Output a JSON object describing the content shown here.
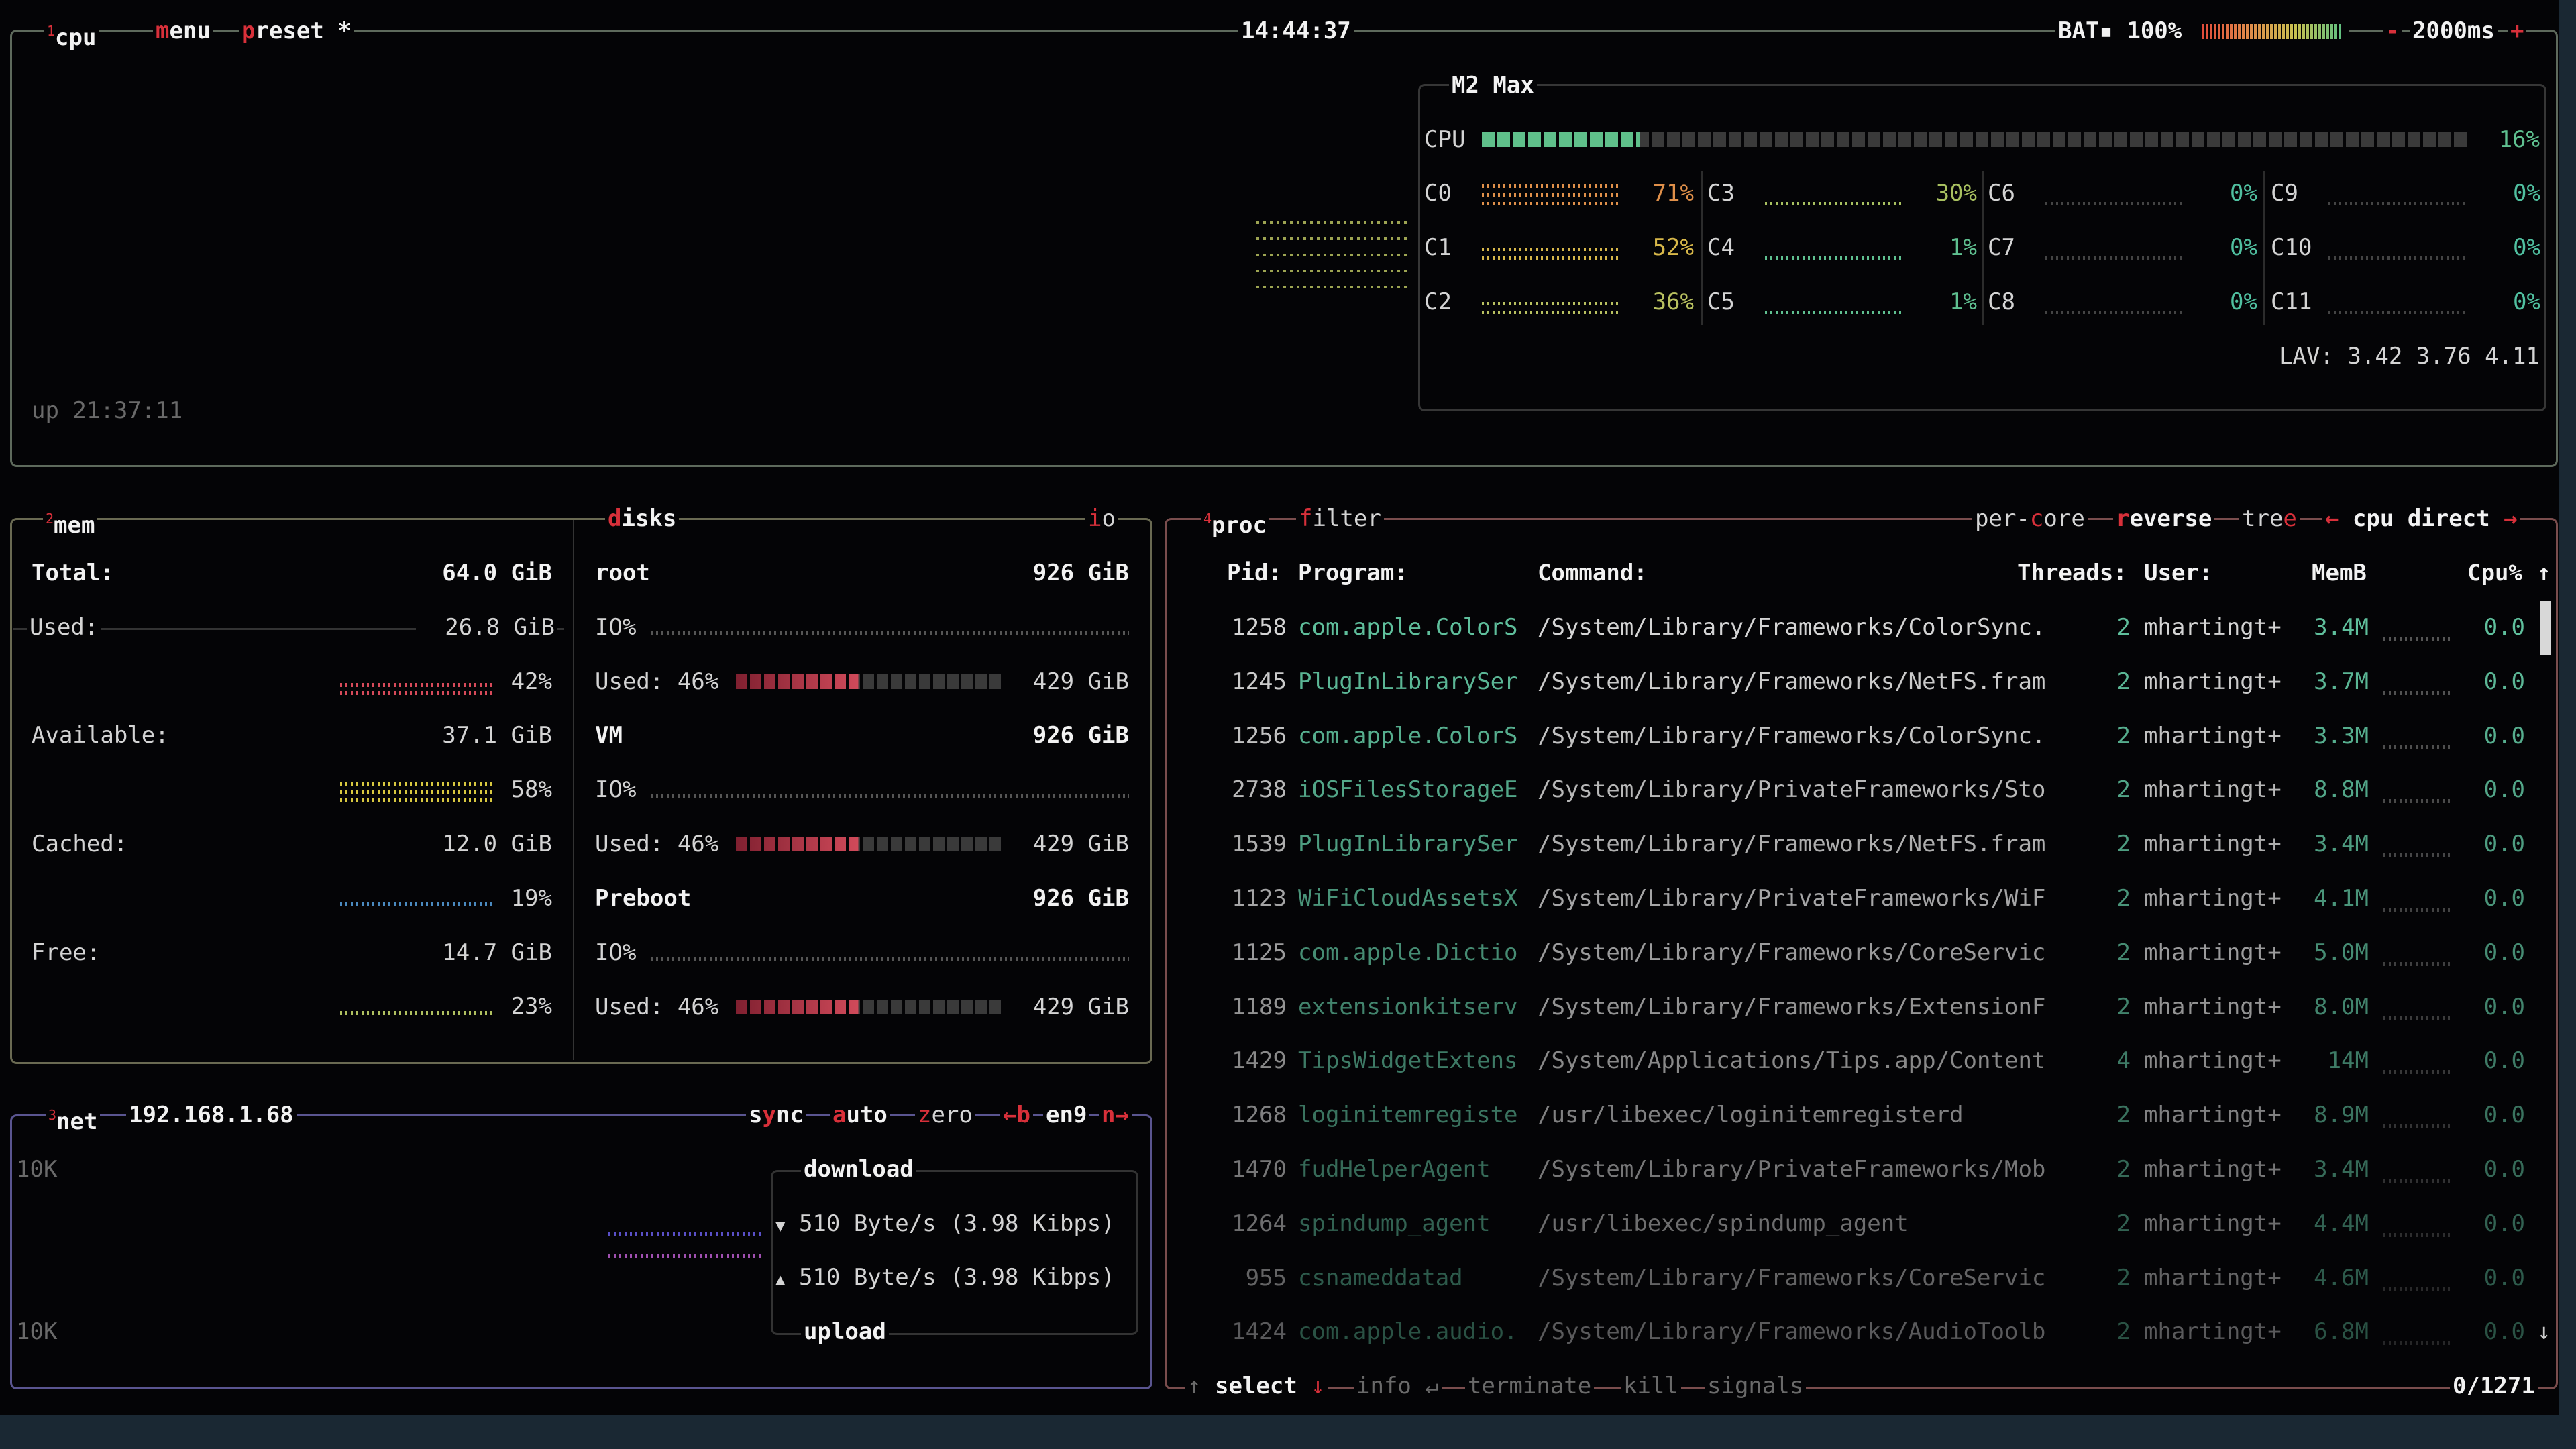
{
  "colors": {
    "cpu_border": "#5e6a5c",
    "mem_border": "#6a6a52",
    "net_border": "#5a5590",
    "proc_border": "#7a4d4d",
    "accent": "#d8303a",
    "program": "#5fbf9c"
  },
  "topbar": {
    "cpu_num": "1",
    "cpu": "cpu",
    "menu_key": "m",
    "menu_rest": "enu",
    "preset_key": "p",
    "preset_rest": "reset",
    "preset_star": "*",
    "clock": "14:44:37",
    "battery_label": "BAT▪ 100%",
    "battery_level": 100,
    "interval_minus": "-",
    "interval": "2000ms",
    "interval_plus": "+"
  },
  "cpu": {
    "model": "M2 Max",
    "label": "CPU",
    "total_pct": 16,
    "total_text": "16%",
    "uptime": "up 21:37:11",
    "load_avg": "LAV: 3.42 3.76 4.11",
    "cores": [
      {
        "name": "C0",
        "pct": 71,
        "text": "71%",
        "color": "#e0904a"
      },
      {
        "name": "C1",
        "pct": 52,
        "text": "52%",
        "color": "#d8b84a"
      },
      {
        "name": "C2",
        "pct": 36,
        "text": "36%",
        "color": "#b8c060"
      },
      {
        "name": "C3",
        "pct": 30,
        "text": "30%",
        "color": "#a8c060"
      },
      {
        "name": "C4",
        "pct": 1,
        "text": "1%",
        "color": "#5fc090"
      },
      {
        "name": "C5",
        "pct": 1,
        "text": "1%",
        "color": "#5fc090"
      },
      {
        "name": "C6",
        "pct": 0,
        "text": "0%",
        "color": "#50c0a0"
      },
      {
        "name": "C7",
        "pct": 0,
        "text": "0%",
        "color": "#50c0a0"
      },
      {
        "name": "C8",
        "pct": 0,
        "text": "0%",
        "color": "#50c0a0"
      },
      {
        "name": "C9",
        "pct": 0,
        "text": "0%",
        "color": "#50c0a0"
      },
      {
        "name": "C10",
        "pct": 0,
        "text": "0%",
        "color": "#50c0a0"
      },
      {
        "name": "C11",
        "pct": 0,
        "text": "0%",
        "color": "#50c0a0"
      }
    ]
  },
  "mem": {
    "num": "2",
    "title": "mem",
    "total_label": "Total:",
    "total": "64.0 GiB",
    "used_label": "Used:",
    "used": "26.8 GiB",
    "used_pct": "42%",
    "used_color": "#d84a5a",
    "avail_label": "Available:",
    "avail": "37.1 GiB",
    "avail_pct": "58%",
    "avail_color": "#d8c840",
    "cached_label": "Cached:",
    "cached": "12.0 GiB",
    "cached_pct": "19%",
    "cached_color": "#4a8ac0",
    "free_label": "Free:",
    "free": "14.7 GiB",
    "free_pct": "23%",
    "free_color": "#b0c060"
  },
  "disks": {
    "title_key": "d",
    "title_rest": "isks",
    "io_key": "i",
    "io_rest": "o",
    "items": [
      {
        "name": "root",
        "size": "926 GiB",
        "io": "IO%",
        "used_label": "Used: 46%",
        "used_pct": 46,
        "used": "429 GiB"
      },
      {
        "name": "VM",
        "size": "926 GiB",
        "io": "IO%",
        "used_label": "Used: 46%",
        "used_pct": 46,
        "used": "429 GiB"
      },
      {
        "name": "Preboot",
        "size": "926 GiB",
        "io": "IO%",
        "used_label": "Used: 46%",
        "used_pct": 46,
        "used": "429 GiB"
      }
    ]
  },
  "net": {
    "num": "3",
    "title": "net",
    "ip": "192.168.1.68",
    "sync_s": "s",
    "sync_y": "y",
    "sync_nc": "nc",
    "auto_key": "a",
    "auto_rest": "uto",
    "zero_key": "z",
    "zero_rest": "ero",
    "prev": "←b",
    "iface": "en9",
    "next": "n→",
    "scale_top": "10K",
    "scale_bottom": "10K",
    "download_label": "download",
    "download_icon": "▼",
    "download": "510 Byte/s (3.98 Kibps)",
    "upload_icon": "▲",
    "upload": "510 Byte/s (3.98 Kibps)",
    "upload_label": "upload"
  },
  "proc": {
    "num": "4",
    "title": "proc",
    "filter_key": "f",
    "filter_rest": "ilter",
    "percore_a": "per-",
    "percore_key": "c",
    "percore_b": "ore",
    "reverse_key": "r",
    "reverse_rest": "everse",
    "tree_a": "tre",
    "tree_key": "e",
    "sort_left": "←",
    "sort": "cpu direct",
    "sort_right": "→",
    "headers": {
      "pid": "Pid:",
      "program": "Program:",
      "command": "Command:",
      "threads": "Threads:",
      "user": "User:",
      "mem": "MemB",
      "cpu": "Cpu%",
      "sort_arrow": "↑"
    },
    "rows": [
      [
        "1258",
        "com.apple.ColorS",
        "/System/Library/Frameworks/ColorSync.",
        "2",
        "mhartingt+",
        "3.4M",
        "0.0"
      ],
      [
        "1245",
        "PlugInLibrarySer",
        "/System/Library/Frameworks/NetFS.fram",
        "2",
        "mhartingt+",
        "3.7M",
        "0.0"
      ],
      [
        "1256",
        "com.apple.ColorS",
        "/System/Library/Frameworks/ColorSync.",
        "2",
        "mhartingt+",
        "3.3M",
        "0.0"
      ],
      [
        "2738",
        "iOSFilesStorageE",
        "/System/Library/PrivateFrameworks/Sto",
        "2",
        "mhartingt+",
        "8.8M",
        "0.0"
      ],
      [
        "1539",
        "PlugInLibrarySer",
        "/System/Library/Frameworks/NetFS.fram",
        "2",
        "mhartingt+",
        "3.4M",
        "0.0"
      ],
      [
        "1123",
        "WiFiCloudAssetsX",
        "/System/Library/PrivateFrameworks/WiF",
        "2",
        "mhartingt+",
        "4.1M",
        "0.0"
      ],
      [
        "1125",
        "com.apple.Dictio",
        "/System/Library/Frameworks/CoreServic",
        "2",
        "mhartingt+",
        "5.0M",
        "0.0"
      ],
      [
        "1189",
        "extensionkitserv",
        "/System/Library/Frameworks/ExtensionF",
        "2",
        "mhartingt+",
        "8.0M",
        "0.0"
      ],
      [
        "1429",
        "TipsWidgetExtens",
        "/System/Applications/Tips.app/Content",
        "4",
        "mhartingt+",
        "14M",
        "0.0"
      ],
      [
        "1268",
        "loginitemregiste",
        "/usr/libexec/loginitemregisterd",
        "2",
        "mhartingt+",
        "8.9M",
        "0.0"
      ],
      [
        "1470",
        "fudHelperAgent",
        "/System/Library/PrivateFrameworks/Mob",
        "2",
        "mhartingt+",
        "3.4M",
        "0.0"
      ],
      [
        "1264",
        "spindump_agent",
        "/usr/libexec/spindump_agent",
        "2",
        "mhartingt+",
        "4.4M",
        "0.0"
      ],
      [
        "955",
        "csnameddatad",
        "/System/Library/Frameworks/CoreServic",
        "2",
        "mhartingt+",
        "4.6M",
        "0.0"
      ],
      [
        "1424",
        "com.apple.audio.",
        "/System/Library/Frameworks/AudioToolb",
        "2",
        "mhartingt+",
        "6.8M",
        "0.0"
      ]
    ],
    "scroll_down": "↓",
    "footer": {
      "up": "↑",
      "select": "select",
      "down": "↓",
      "info": "info",
      "enter": "↵",
      "terminate": "terminate",
      "kill": "kill",
      "signals": "signals",
      "count": "0/1271"
    }
  }
}
